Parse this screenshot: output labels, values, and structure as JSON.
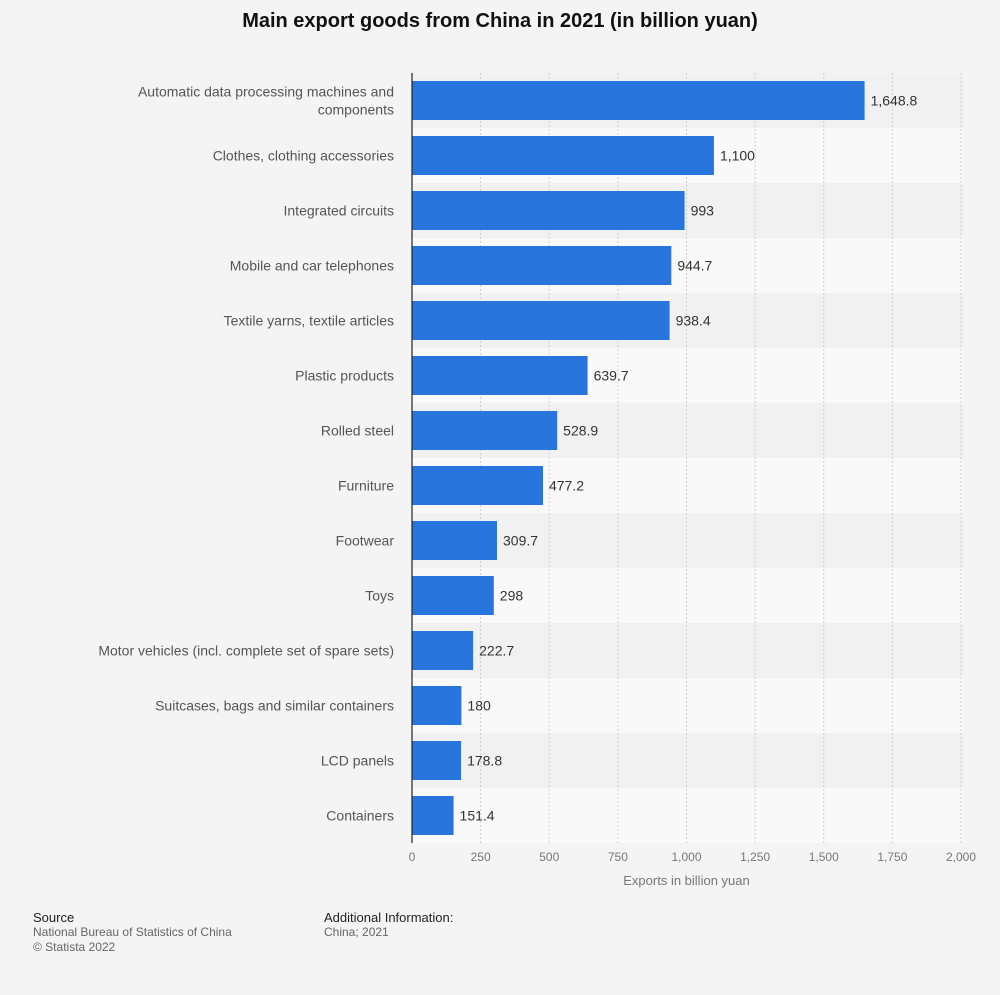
{
  "chart_data": {
    "type": "bar",
    "orientation": "horizontal",
    "title": "Main export goods from China in 2021 (in billion yuan)",
    "xlabel": "Exports in billion yuan",
    "ylabel": "",
    "xlim": [
      0,
      2000
    ],
    "ticks": [
      "0",
      "250",
      "500",
      "750",
      "1,000",
      "1,250",
      "1,500",
      "1,750",
      "2,000"
    ],
    "grid": true,
    "bar_color": "#2876dd",
    "categories": [
      "Automatic data processing machines and components",
      "Clothes, clothing accessories",
      "Integrated circuits",
      "Mobile and car telephones",
      "Textile yarns, textile articles",
      "Plastic products",
      "Rolled steel",
      "Furniture",
      "Footwear",
      "Toys",
      "Motor vehicles (incl. complete set of spare sets)",
      "Suitcases, bags and similar containers",
      "LCD panels",
      "Containers"
    ],
    "values": [
      1648.8,
      1100,
      993,
      944.7,
      938.4,
      639.7,
      528.9,
      477.2,
      309.7,
      298,
      222.7,
      180,
      178.8,
      151.4
    ],
    "labels": [
      "1,648.8",
      "1,100",
      "993",
      "944.7",
      "938.4",
      "639.7",
      "528.9",
      "477.2",
      "309.7",
      "298",
      "222.7",
      "180",
      "178.8",
      "151.4"
    ]
  },
  "footer": {
    "source_label": "Source",
    "source_text": "National Bureau of Statistics of China",
    "copyright": "© Statista 2022",
    "info_label": "Additional Information:",
    "info_text": "China; 2021"
  }
}
